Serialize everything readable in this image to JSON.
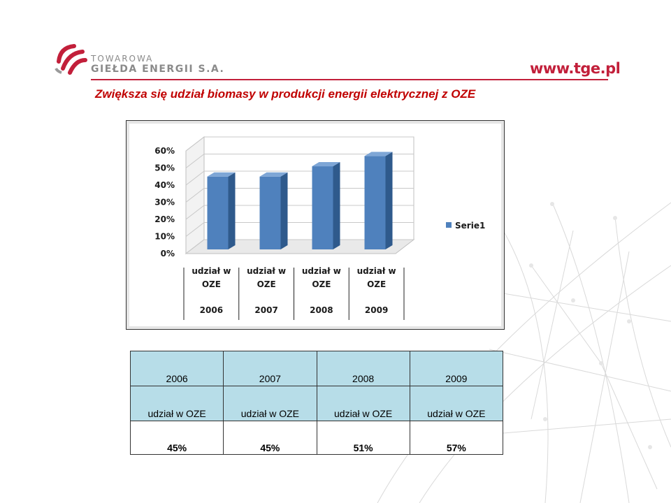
{
  "header": {
    "logo_line1": "TOWAROWA",
    "logo_line2": "GIEŁDA ENERGII S.A.",
    "url": "www.tge.pl",
    "title": "Zwiększa się  udział biomasy w produkcji energii elektrycznej z OZE",
    "accent_color": "#c21f3a"
  },
  "chart_data": {
    "type": "bar",
    "categories": [
      "2006",
      "2007",
      "2008",
      "2009"
    ],
    "category_sublabels": [
      "udział w OZE",
      "udział w OZE",
      "udział w OZE",
      "udział w OZE"
    ],
    "series": [
      {
        "name": "Serie1",
        "values": [
          45,
          45,
          51,
          57
        ],
        "color": "#4f81bd"
      }
    ],
    "yticks": [
      "0%",
      "10%",
      "20%",
      "30%",
      "40%",
      "50%",
      "60%"
    ],
    "ylim": [
      0,
      60
    ],
    "legend_position": "right",
    "style": "3d-column",
    "grid": false
  },
  "table": {
    "years": [
      "2006",
      "2007",
      "2008",
      "2009"
    ],
    "labels": [
      "udział w OZE",
      "udział w OZE",
      "udział w OZE",
      "udział w OZE"
    ],
    "values": [
      "45%",
      "45%",
      "51%",
      "57%"
    ]
  }
}
